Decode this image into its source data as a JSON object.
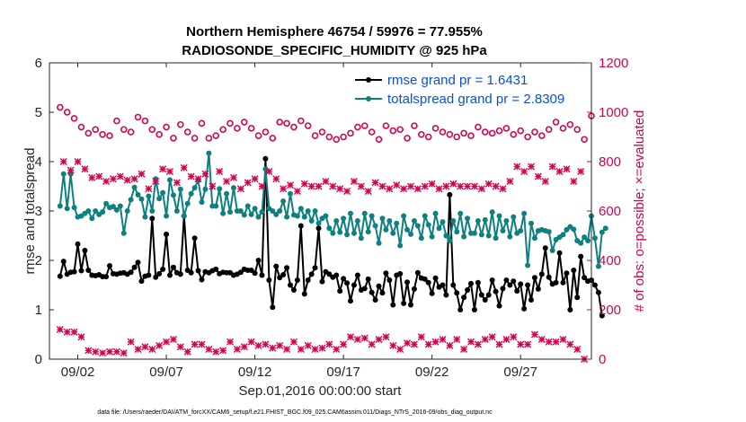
{
  "title_line1": "Northern Hemisphere 46754 / 59976 = 77.955%",
  "title_line2": "RADIOSONDE_SPECIFIC_HUMIDITY @ 925 hPa",
  "xlabel": "Sep.01,2016 00:00:00 start",
  "footnote": "data file: /Users/raeder/DAI/ATM_forcXX/CAM6_setup/f.e21.FHIST_BGC.f09_025.CAM6assim.011/Diags_NTrS_2016-09/obs_diag_output.nc",
  "colors": {
    "rmse": "#000000",
    "spread": "#0f8080",
    "obs": "#d6004d",
    "legend_text": "#0a4ee0"
  },
  "chart_data": {
    "type": "line",
    "x_unit": "day of Sep 2016 (fractional, 6-hourly)",
    "xlim": [
      0.4,
      31.0
    ],
    "x_ticks": [
      2,
      7,
      12,
      17,
      22,
      27
    ],
    "x_tick_labels": [
      "09/02",
      "09/07",
      "09/12",
      "09/17",
      "09/22",
      "09/27"
    ],
    "ylabel_left": "rmse and totalspread",
    "ylim_left": [
      0,
      6
    ],
    "y_ticks_left": [
      "0",
      "1",
      "2",
      "3",
      "4",
      "5",
      "6"
    ],
    "ylabel_right": "# of obs: o=possible; ×=evaluated",
    "ylim_right": [
      0,
      1200
    ],
    "y_ticks_right": [
      "0",
      "200",
      "400",
      "600",
      "800",
      "1000",
      "1200"
    ],
    "legend_position": "top-right",
    "series": [
      {
        "name": "rmse grand pr = 1.6431",
        "axis": "left",
        "style": "line-dot",
        "color": "#000000",
        "values": [
          1.68,
          1.98,
          1.72,
          1.76,
          1.77,
          2.33,
          1.79,
          2.2,
          1.8,
          1.7,
          1.69,
          1.71,
          1.67,
          1.67,
          1.89,
          1.73,
          1.72,
          1.74,
          1.75,
          1.72,
          1.76,
          1.86,
          1.96,
          1.58,
          1.68,
          1.7,
          2.85,
          1.66,
          1.73,
          1.82,
          2.53,
          1.7,
          1.86,
          1.75,
          1.72,
          2.9,
          1.8,
          1.75,
          2.45,
          1.79,
          1.61,
          1.77,
          1.75,
          1.79,
          1.82,
          1.73,
          1.76,
          1.75,
          1.75,
          1.7,
          1.72,
          1.76,
          1.82,
          1.8,
          1.8,
          1.74,
          2.0,
          1.7,
          4.06,
          1.6,
          1.05,
          1.88,
          1.65,
          1.71,
          1.85,
          1.5,
          1.4,
          1.6,
          2.7,
          1.32,
          1.6,
          1.72,
          1.85,
          2.65,
          1.57,
          1.77,
          1.72,
          1.66,
          1.7,
          1.38,
          1.63,
          1.54,
          1.18,
          1.5,
          1.7,
          1.4,
          1.43,
          1.62,
          1.35,
          1.2,
          1.48,
          1.34,
          1.74,
          1.6,
          1.1,
          1.7,
          1.73,
          1.13,
          1.56,
          1.1,
          1.42,
          1.75,
          1.64,
          1.62,
          1.55,
          1.33,
          1.64,
          1.46,
          1.5,
          1.3,
          3.33,
          1.5,
          1.34,
          1.0,
          1.25,
          1.4,
          1.53,
          1.0,
          1.55,
          1.3,
          1.2,
          1.3,
          1.6,
          1.37,
          1.08,
          1.43,
          1.6,
          1.5,
          1.58,
          1.38,
          1.52,
          1.02,
          1.5,
          1.2,
          1.65,
          1.42,
          1.72,
          2.25,
          1.66,
          1.52,
          1.55,
          2.15,
          1.55,
          1.74,
          1.0,
          1.8,
          1.25,
          2.08,
          1.65,
          1.58,
          1.6,
          1.5,
          1.35,
          0.88
        ]
      },
      {
        "name": "totalspread grand pr = 2.8309",
        "axis": "left",
        "style": "line-dot",
        "color": "#0f8080",
        "values": [
          3.1,
          3.75,
          3.05,
          3.75,
          3.07,
          2.88,
          2.9,
          2.95,
          3.0,
          2.85,
          3.0,
          2.93,
          2.98,
          3.15,
          3.07,
          3.09,
          3.02,
          3.1,
          2.55,
          3.0,
          3.23,
          3.48,
          3.33,
          3.24,
          2.88,
          3.3,
          3.0,
          3.65,
          3.25,
          3.37,
          2.9,
          3.63,
          3.32,
          3.0,
          3.44,
          2.9,
          3.15,
          3.35,
          3.47,
          3.62,
          3.18,
          3.44,
          4.17,
          3.1,
          3.1,
          3.45,
          2.95,
          3.35,
          2.98,
          3.47,
          3.0,
          3.0,
          2.92,
          3.1,
          2.93,
          3.05,
          2.88,
          2.98,
          3.85,
          3.05,
          3.0,
          2.93,
          3.0,
          3.2,
          2.88,
          3.35,
          2.92,
          2.9,
          3.05,
          2.88,
          3.0,
          2.8,
          3.0,
          2.75,
          2.85,
          2.9,
          2.65,
          2.55,
          2.8,
          2.57,
          2.85,
          2.52,
          2.95,
          2.55,
          2.8,
          2.45,
          2.95,
          2.58,
          2.9,
          2.7,
          2.35,
          2.85,
          2.62,
          2.8,
          2.55,
          2.75,
          2.3,
          2.9,
          2.62,
          2.53,
          2.8,
          2.7,
          2.45,
          2.9,
          2.72,
          2.48,
          2.95,
          2.65,
          2.78,
          2.5,
          2.4,
          2.8,
          2.58,
          2.95,
          2.48,
          2.85,
          2.55,
          2.55,
          2.8,
          2.52,
          2.82,
          2.5,
          2.98,
          2.45,
          2.9,
          2.6,
          2.8,
          2.48,
          2.88,
          2.55,
          2.6,
          2.95,
          1.9,
          2.75,
          2.45,
          2.6,
          2.62,
          2.6,
          2.58,
          2.2,
          2.42,
          2.47,
          2.52,
          2.62,
          2.68,
          2.63,
          2.4,
          2.35,
          2.47,
          2.4,
          2.9,
          2.45,
          1.88,
          2.57,
          2.65
        ]
      },
      {
        "name": "possible",
        "axis": "right",
        "style": "marker-o",
        "color": "#d6004d",
        "values": [
          1020,
          970,
          1000,
          940,
          975,
          920,
          940,
          935,
          915,
          940,
          930,
          950,
          910,
          935,
          905,
          945,
          965,
          920,
          930,
          900,
          920,
          940,
          980,
          925,
          965,
          890,
          930,
          975,
          910,
          880,
          940,
          960,
          895,
          920,
          950,
          975,
          920,
          945,
          895,
          985,
          955,
          960,
          895,
          940,
          905,
          965,
          930,
          870,
          955,
          890,
          935,
          905,
          960,
          900,
          935,
          950,
          905,
          960,
          920,
          945,
          895,
          900,
          960,
          920,
          955,
          890,
          940,
          900,
          965,
          920,
          945,
          910,
          905,
          950,
          920,
          880,
          900,
          950,
          890,
          945,
          900,
          930,
          915,
          890,
          940,
          925,
          945,
          905,
          920,
          940,
          890,
          930,
          945,
          905,
          925,
          890,
          930,
          910,
          895,
          900,
          945,
          900,
          910,
          935,
          900,
          905,
          935,
          895,
          920,
          885,
          910,
          945,
          900,
          890,
          915,
          930,
          905,
          925,
          940,
          895,
          920,
          930,
          915,
          905,
          925,
          930,
          935,
          920,
          910,
          905,
          925,
          945,
          900,
          890,
          920,
          910,
          905,
          915,
          930,
          900,
          960,
          915,
          935,
          910,
          950,
          905,
          930,
          945,
          890,
          965,
          985
        ]
      },
      {
        "name": "evaluated",
        "axis": "right",
        "style": "marker-x",
        "color": "#d6004d",
        "values": [
          120,
          800,
          110,
          765,
          110,
          800,
          90,
          770,
          35,
          735,
          30,
          740,
          25,
          720,
          30,
          730,
          30,
          740,
          25,
          725,
          70,
          730,
          40,
          750,
          50,
          690,
          40,
          720,
          55,
          770,
          70,
          760,
          80,
          715,
          50,
          775,
          30,
          740,
          60,
          730,
          60,
          750,
          40,
          700,
          30,
          760,
          35,
          720,
          70,
          735,
          40,
          690,
          50,
          715,
          70,
          730,
          55,
          700,
          60,
          760,
          45,
          730,
          55,
          690,
          40,
          705,
          70,
          680,
          40,
          710,
          55,
          700,
          40,
          700,
          45,
          720,
          60,
          700,
          40,
          690,
          60,
          680,
          90,
          720,
          80,
          700,
          85,
          680,
          60,
          715,
          80,
          700,
          90,
          690,
          55,
          705,
          40,
          690,
          65,
          700,
          60,
          690,
          90,
          700,
          60,
          710,
          70,
          690,
          80,
          700,
          55,
          710,
          80,
          700,
          40,
          700,
          70,
          700,
          60,
          690,
          80,
          710,
          90,
          700,
          60,
          690,
          80,
          720,
          90,
          780,
          60,
          760,
          60,
          780,
          100,
          740,
          80,
          720,
          70,
          780,
          70,
          760,
          80,
          770,
          60,
          720,
          40,
          760,
          0
        ]
      }
    ]
  }
}
